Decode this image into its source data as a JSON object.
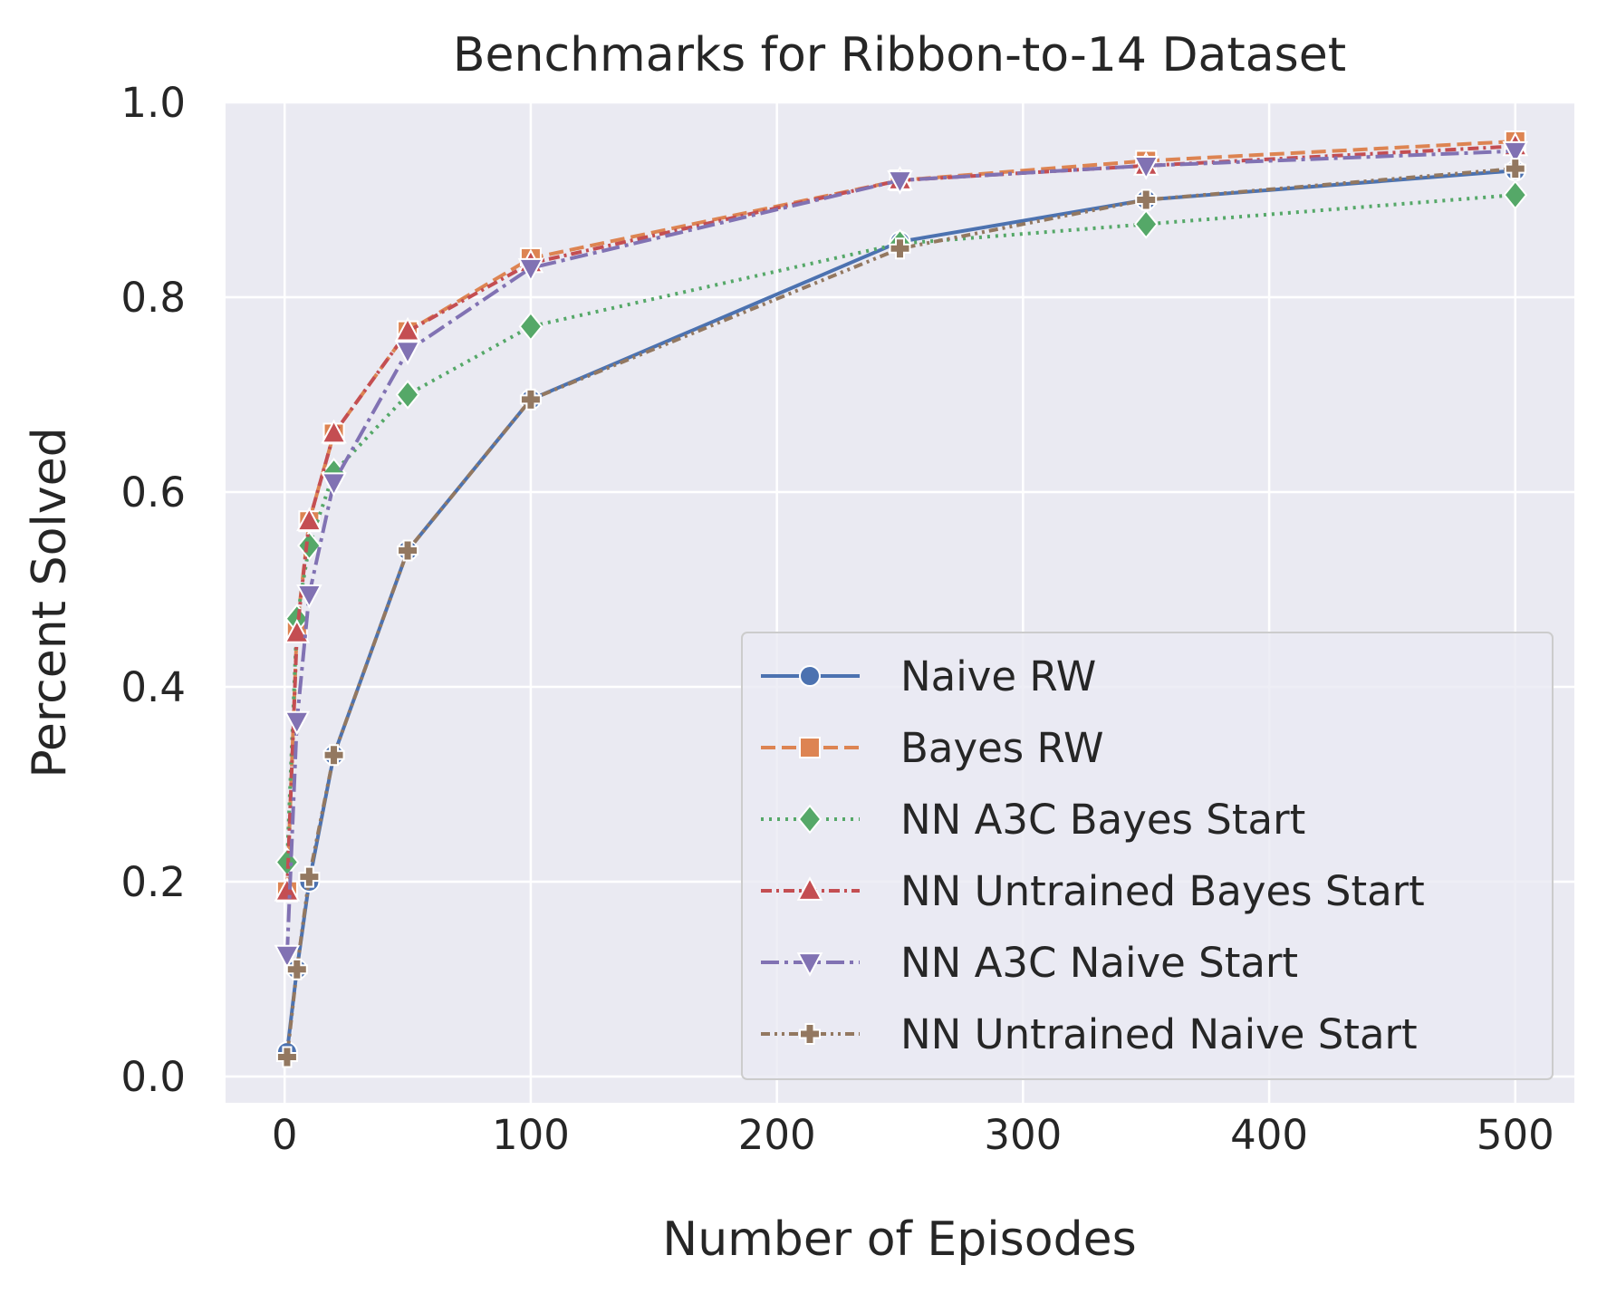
{
  "chart_data": {
    "type": "line",
    "title": "Benchmarks for Ribbon-to-14 Dataset",
    "xlabel": "Number of Episodes",
    "ylabel": "Percent Solved",
    "xlim": [
      -24,
      524
    ],
    "ylim": [
      -0.027,
      1.0
    ],
    "xticks": [
      0,
      100,
      200,
      300,
      400,
      500
    ],
    "yticks": [
      0.0,
      0.2,
      0.4,
      0.6,
      0.8,
      1.0
    ],
    "xtick_labels": [
      "0",
      "100",
      "200",
      "300",
      "400",
      "500"
    ],
    "ytick_labels": [
      "0.0",
      "0.2",
      "0.4",
      "0.6",
      "0.8",
      "1.0"
    ],
    "grid": true,
    "background": "#eaeaf2",
    "legend_position": "bottom-right",
    "x": [
      1,
      5,
      10,
      20,
      50,
      100,
      250,
      350,
      500
    ],
    "series": [
      {
        "name": "Naive RW",
        "color": "#4c72b0",
        "marker": "circle",
        "dash": "solid",
        "values": [
          0.025,
          0.11,
          0.2,
          0.33,
          0.54,
          0.695,
          0.857,
          0.9,
          0.93
        ]
      },
      {
        "name": "Bayes RW",
        "color": "#dd8452",
        "marker": "square",
        "dash": "dashed",
        "values": [
          0.19,
          0.46,
          0.57,
          0.66,
          0.765,
          0.84,
          0.92,
          0.94,
          0.96
        ]
      },
      {
        "name": "NN A3C Bayes Start",
        "color": "#55a868",
        "marker": "diamond",
        "dash": "dotted",
        "values": [
          0.22,
          0.47,
          0.545,
          0.62,
          0.7,
          0.77,
          0.855,
          0.875,
          0.905
        ]
      },
      {
        "name": "NN Untrained Bayes Start",
        "color": "#c44e52",
        "marker": "triangle-up",
        "dash": "dash-dot",
        "values": [
          0.19,
          0.455,
          0.57,
          0.66,
          0.765,
          0.835,
          0.92,
          0.935,
          0.955
        ]
      },
      {
        "name": "NN A3C Naive Start",
        "color": "#8172b3",
        "marker": "triangle-down",
        "dash": "long-dash-dot",
        "values": [
          0.125,
          0.365,
          0.495,
          0.61,
          0.745,
          0.83,
          0.92,
          0.935,
          0.95
        ]
      },
      {
        "name": "NN Untrained Naive Start",
        "color": "#937860",
        "marker": "plus",
        "dash": "dash-dot-dot",
        "values": [
          0.02,
          0.11,
          0.205,
          0.33,
          0.54,
          0.695,
          0.85,
          0.9,
          0.932
        ]
      }
    ]
  }
}
